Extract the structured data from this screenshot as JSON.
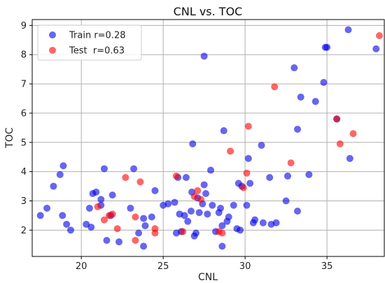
{
  "chart_data": {
    "type": "scatter",
    "title": "CNL vs. TOC",
    "xlabel": "CNL",
    "ylabel": "TOC",
    "xlim": [
      17.0,
      38.5
    ],
    "ylim": [
      1.1,
      9.2
    ],
    "x_ticks": [
      20,
      25,
      30,
      35
    ],
    "y_ticks": [
      2,
      3,
      4,
      5,
      6,
      7,
      8,
      9
    ],
    "grid": true,
    "legend_position": "top-left",
    "series": [
      {
        "name": "Train r=0.28",
        "color": "#0000e6",
        "points": [
          [
            17.5,
            2.5
          ],
          [
            17.9,
            2.75
          ],
          [
            18.3,
            3.5
          ],
          [
            18.7,
            3.9
          ],
          [
            18.9,
            4.2
          ],
          [
            18.85,
            2.5
          ],
          [
            19.1,
            2.2
          ],
          [
            19.35,
            2.0
          ],
          [
            20.3,
            2.2
          ],
          [
            20.6,
            2.1
          ],
          [
            20.5,
            2.75
          ],
          [
            20.7,
            3.25
          ],
          [
            20.9,
            3.3
          ],
          [
            21.2,
            3.05
          ],
          [
            21.4,
            4.1
          ],
          [
            21.2,
            2.85
          ],
          [
            21.55,
            1.65
          ],
          [
            21.8,
            2.5
          ],
          [
            21.9,
            3.2
          ],
          [
            22.3,
            1.6
          ],
          [
            23.0,
            2.75
          ],
          [
            23.2,
            4.1
          ],
          [
            23.5,
            1.9
          ],
          [
            23.8,
            1.45
          ],
          [
            23.8,
            2.4
          ],
          [
            23.9,
            2.15
          ],
          [
            24.3,
            2.45
          ],
          [
            24.5,
            3.35
          ],
          [
            25.0,
            2.85
          ],
          [
            25.3,
            2.9
          ],
          [
            25.7,
            2.95
          ],
          [
            25.8,
            1.9
          ],
          [
            25.9,
            3.8
          ],
          [
            26.0,
            2.55
          ],
          [
            26.1,
            1.95
          ],
          [
            26.3,
            2.5
          ],
          [
            26.4,
            3.8
          ],
          [
            26.5,
            2.3
          ],
          [
            26.7,
            2.65
          ],
          [
            26.75,
            3.3
          ],
          [
            26.8,
            4.95
          ],
          [
            26.9,
            1.8
          ],
          [
            27.0,
            1.9
          ],
          [
            27.1,
            3.1
          ],
          [
            27.2,
            2.6
          ],
          [
            27.4,
            2.9
          ],
          [
            27.5,
            3.55
          ],
          [
            27.5,
            7.95
          ],
          [
            27.6,
            3.25
          ],
          [
            27.7,
            2.55
          ],
          [
            27.9,
            4.05
          ],
          [
            28.0,
            2.85
          ],
          [
            28.2,
            1.95
          ],
          [
            28.4,
            2.6
          ],
          [
            28.5,
            2.75
          ],
          [
            28.6,
            1.45
          ],
          [
            28.6,
            2.15
          ],
          [
            28.7,
            5.4
          ],
          [
            28.9,
            2.3
          ],
          [
            29.0,
            2.45
          ],
          [
            29.3,
            2.85
          ],
          [
            29.5,
            2.05
          ],
          [
            29.6,
            3.6
          ],
          [
            29.7,
            2.0
          ],
          [
            29.8,
            3.5
          ],
          [
            30.1,
            2.85
          ],
          [
            30.2,
            4.45
          ],
          [
            30.3,
            3.6
          ],
          [
            30.5,
            2.25
          ],
          [
            30.6,
            2.35
          ],
          [
            31.0,
            4.9
          ],
          [
            31.1,
            2.25
          ],
          [
            31.5,
            3.8
          ],
          [
            31.6,
            2.2
          ],
          [
            31.9,
            2.25
          ],
          [
            32.5,
            3.0
          ],
          [
            32.6,
            3.85
          ],
          [
            33.0,
            7.55
          ],
          [
            33.2,
            2.65
          ],
          [
            33.2,
            5.45
          ],
          [
            33.4,
            6.55
          ],
          [
            33.9,
            3.9
          ],
          [
            34.3,
            6.4
          ],
          [
            34.8,
            7.05
          ],
          [
            34.9,
            8.25
          ],
          [
            35.0,
            8.25
          ],
          [
            35.6,
            5.8
          ],
          [
            36.3,
            8.85
          ],
          [
            36.4,
            4.45
          ],
          [
            38.0,
            8.2
          ]
        ]
      },
      {
        "name": "Test  r=0.63",
        "color": "#ff0000",
        "points": [
          [
            21.0,
            2.8
          ],
          [
            21.4,
            2.35
          ],
          [
            21.7,
            2.5
          ],
          [
            21.9,
            2.55
          ],
          [
            22.2,
            2.05
          ],
          [
            22.7,
            3.8
          ],
          [
            23.3,
            2.45
          ],
          [
            23.3,
            1.65
          ],
          [
            23.6,
            3.65
          ],
          [
            24.5,
            1.9
          ],
          [
            24.5,
            2.05
          ],
          [
            25.8,
            3.85
          ],
          [
            26.2,
            1.95
          ],
          [
            26.9,
            3.15
          ],
          [
            27.1,
            3.35
          ],
          [
            27.3,
            3.05
          ],
          [
            28.4,
            1.95
          ],
          [
            28.6,
            1.9
          ],
          [
            29.1,
            4.7
          ],
          [
            29.9,
            3.45
          ],
          [
            30.1,
            3.95
          ],
          [
            30.2,
            5.55
          ],
          [
            31.8,
            6.9
          ],
          [
            32.8,
            4.3
          ],
          [
            35.6,
            5.8
          ],
          [
            35.8,
            4.95
          ],
          [
            36.6,
            5.3
          ],
          [
            38.2,
            8.65
          ]
        ]
      }
    ]
  }
}
